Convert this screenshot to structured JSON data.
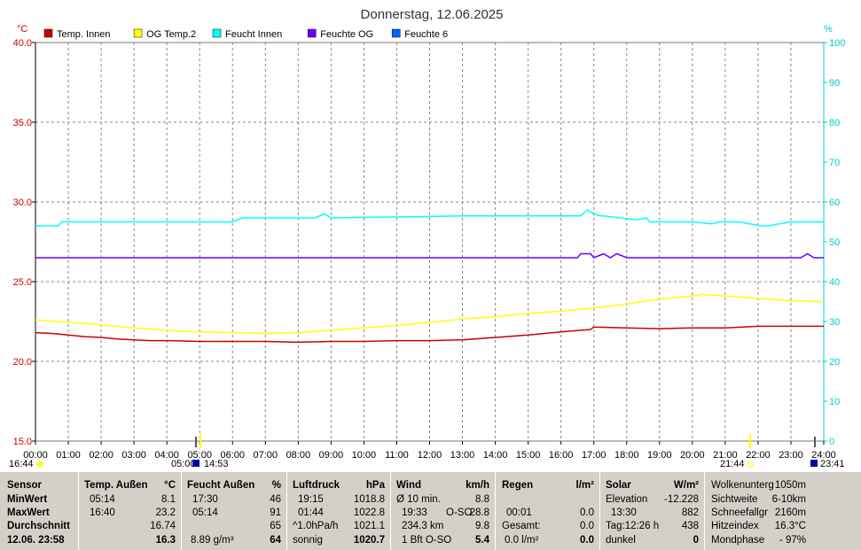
{
  "chart_data": {
    "type": "line",
    "title": "Donnerstag, 12.06.2025",
    "ylabel_left": "°C",
    "ylabel_right": "%",
    "ylim_left": [
      15.0,
      40.0
    ],
    "ylim_right": [
      0,
      100
    ],
    "yticks_left": [
      "15.0",
      "20.0",
      "25.0",
      "30.0",
      "35.0",
      "40.0"
    ],
    "yticks_right": [
      "0",
      "10",
      "20",
      "30",
      "40",
      "50",
      "60",
      "70",
      "80",
      "90",
      "100"
    ],
    "xticks": [
      "00:00",
      "01:00",
      "02:00",
      "03:00",
      "04:00",
      "05:00",
      "06:00",
      "07:00",
      "08:00",
      "09:00",
      "10:00",
      "11:00",
      "12:00",
      "13:00",
      "14:00",
      "15:00",
      "16:00",
      "17:00",
      "18:00",
      "19:00",
      "20:00",
      "21:00",
      "22:00",
      "23:00",
      "24:00"
    ],
    "grid": true,
    "legend_position": "top-left",
    "series": [
      {
        "name": "Temp. Innen",
        "color": "#cc0000",
        "axis": "left",
        "x": [
          0,
          0.5,
          1,
          1.5,
          2,
          2.5,
          3,
          3.5,
          4,
          5,
          6,
          7,
          8,
          9,
          10,
          11,
          12,
          13,
          14,
          15,
          16,
          16.9,
          17,
          18,
          19,
          20,
          21,
          22,
          23,
          24
        ],
        "y": [
          21.8,
          21.75,
          21.65,
          21.55,
          21.5,
          21.4,
          21.35,
          21.3,
          21.3,
          21.25,
          21.25,
          21.25,
          21.2,
          21.25,
          21.25,
          21.3,
          21.3,
          21.35,
          21.5,
          21.65,
          21.85,
          22.0,
          22.15,
          22.1,
          22.05,
          22.1,
          22.1,
          22.2,
          22.2,
          22.2
        ]
      },
      {
        "name": "OG Temp.2",
        "color": "#ffff00",
        "axis": "left",
        "x": [
          0,
          1,
          2,
          3,
          4,
          5,
          6,
          7,
          8,
          9,
          10,
          11,
          12,
          13,
          14,
          15,
          16,
          17,
          18,
          19,
          20,
          20.3,
          21,
          22,
          23,
          24
        ],
        "y": [
          22.6,
          22.45,
          22.3,
          22.1,
          21.95,
          21.85,
          21.8,
          21.75,
          21.8,
          21.95,
          22.1,
          22.25,
          22.45,
          22.65,
          22.8,
          23.0,
          23.15,
          23.35,
          23.6,
          23.9,
          24.1,
          24.2,
          24.1,
          23.95,
          23.8,
          23.75
        ]
      },
      {
        "name": "Feucht Innen",
        "color": "#00ffff",
        "axis": "right",
        "x": [
          0,
          0.7,
          0.8,
          6,
          6.3,
          6.5,
          8.5,
          8.8,
          9,
          13,
          16.6,
          16.8,
          17,
          17.2,
          17.3,
          18.3,
          18.6,
          18.7,
          19.4,
          20,
          20.6,
          20.8,
          21.4,
          22.1,
          22.3,
          23,
          24
        ],
        "y": [
          54,
          54,
          55,
          55,
          56,
          56,
          56,
          57,
          56,
          56.5,
          56.5,
          58,
          57,
          56.5,
          56.5,
          55.5,
          56,
          55,
          55,
          55,
          54.5,
          55,
          55,
          54,
          54,
          55,
          55
        ]
      },
      {
        "name": "Feuchte OG",
        "color": "#6600ff",
        "axis": "right",
        "x": [
          0,
          16.5,
          16.6,
          16.9,
          17,
          17.3,
          17.5,
          17.7,
          18,
          18.1,
          23.3,
          23.5,
          23.7,
          24
        ],
        "y": [
          46,
          46,
          47,
          47,
          46,
          47,
          46,
          47,
          46,
          46,
          46,
          47,
          46,
          46
        ]
      },
      {
        "name": "Feuchte 6",
        "color": "#0066ff",
        "axis": "right",
        "x": [],
        "y": []
      }
    ],
    "time_markers": {
      "left_top": "16:44",
      "left_mid": "05:00",
      "left_mid2": "14:53",
      "right_top": "21:44",
      "right_mid": "23:41"
    }
  },
  "table": {
    "sensor": {
      "header": "Sensor",
      "r1": "MinWert",
      "r2": "MaxWert",
      "r3": "Durchschnitt",
      "r4": "12.06. 23:58"
    },
    "temp": {
      "header": "Temp. Außen",
      "unit": "°C",
      "min_time": "05:14",
      "min_val": "8.1",
      "max_time": "16:40",
      "max_val": "23.2",
      "avg": "16.74",
      "cur": "16.3"
    },
    "feucht": {
      "header": "Feucht Außen",
      "unit": "%",
      "min_time": "17:30",
      "min_val": "46",
      "max_time": "05:14",
      "max_val": "91",
      "avg": "65",
      "abs": "8.89 g/m³",
      "cur": "64"
    },
    "luft": {
      "header": "Luftdruck",
      "unit": "hPa",
      "min_time": "19:15",
      "min_val": "1018.8",
      "max_time": "01:44",
      "max_val": "1022.8",
      "trend_label": "^1.0hPa/h",
      "trend_val": "1021.1",
      "forecast": "sonnig",
      "cur": "1020.7"
    },
    "wind": {
      "header": "Wind",
      "unit": "km/h",
      "avg_label": "Ø 10 min.",
      "avg_val": "8.8",
      "gust_time": "19:33",
      "gust_dir": "O-SO",
      "gust_val": "28.8",
      "run": "234.3 km",
      "run_val": "9.8",
      "bft": "1 Bft O-SO",
      "cur": "5.4"
    },
    "regen": {
      "header": "Regen",
      "unit": "l/m²",
      "time": "00:01",
      "time_val": "0.0",
      "total_label": "Gesamt:",
      "total_val": "0.0",
      "rate": "0.0 l/m²",
      "cur": "0.0"
    },
    "solar": {
      "header": "Solar",
      "unit": "W/m²",
      "elev_label": "Elevation",
      "elev_val": "-12.228",
      "max_time": "13:30",
      "max_val": "882",
      "day": "Tag:12:26 h",
      "day_val": "438",
      "state": "dunkel",
      "cur": "0"
    },
    "extra": {
      "l1": "Wolkenunterg",
      "v1": "1050m",
      "l2": "Sichtweite",
      "v2": "6-10km",
      "l3": "Schneefallgr",
      "v3": "2160m",
      "l4": "Hitzeindex",
      "v4": "16.3°C",
      "l5": "Mondphase",
      "v5": "- 97%"
    }
  }
}
